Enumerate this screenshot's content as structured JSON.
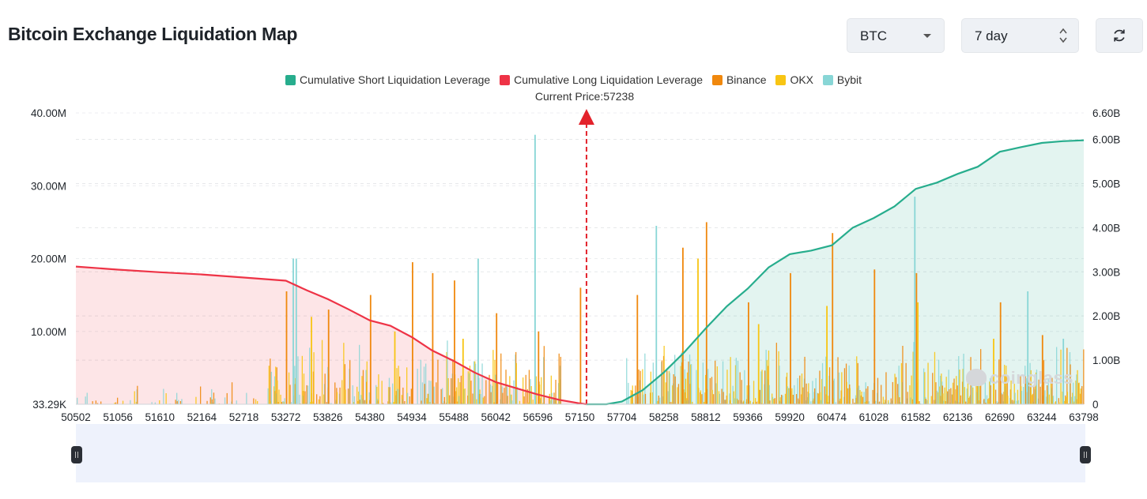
{
  "header": {
    "title": "Bitcoin Exchange Liquidation Map"
  },
  "controls": {
    "coin_value": "BTC",
    "range_value": "7 day",
    "refresh_icon": "refresh-icon"
  },
  "legend": [
    {
      "label": "Cumulative Short Liquidation Leverage",
      "color": "#27ad8d"
    },
    {
      "label": "Cumulative Long Liquidation Leverage",
      "color": "#ee3346"
    },
    {
      "label": "Binance",
      "color": "#f0880d"
    },
    {
      "label": "OKX",
      "color": "#f8c513"
    },
    {
      "label": "Bybit",
      "color": "#88d6d6"
    }
  ],
  "current_price_label": "Current Price:57238",
  "watermark": "coinglass",
  "chart_data": {
    "type": "bar",
    "title": "Bitcoin Exchange Liquidation Map",
    "current_price": 57238,
    "x_ticks": [
      "50502",
      "51056",
      "51610",
      "52164",
      "52718",
      "53272",
      "53826",
      "54380",
      "54934",
      "55488",
      "56042",
      "56596",
      "57150",
      "57704",
      "58258",
      "58812",
      "59366",
      "59920",
      "60474",
      "61028",
      "61582",
      "62136",
      "62690",
      "63244",
      "63798"
    ],
    "x_range": [
      50502,
      63798
    ],
    "y_left": {
      "ticks": [
        "33.29K",
        "10.00M",
        "20.00M",
        "30.00M",
        "40.00M"
      ],
      "tick_values": [
        33290,
        10000000,
        20000000,
        30000000,
        40000000
      ],
      "range": [
        0,
        40000000
      ]
    },
    "y_right": {
      "ticks": [
        "0",
        "1.00B",
        "2.00B",
        "3.00B",
        "4.00B",
        "5.00B",
        "6.00B",
        "6.60B"
      ],
      "tick_values": [
        0,
        1000000000.0,
        2000000000.0,
        3000000000.0,
        4000000000.0,
        5000000000.0,
        6000000000.0,
        6600000000.0
      ],
      "range": [
        0,
        6600000000.0
      ]
    },
    "series": [
      {
        "name": "Cumulative Long Liquidation Leverage",
        "type": "area",
        "axis": "right",
        "points": [
          [
            50502,
            3120000000.0
          ],
          [
            51056,
            3050000000.0
          ],
          [
            51610,
            2990000000.0
          ],
          [
            52164,
            2940000000.0
          ],
          [
            52718,
            2870000000.0
          ],
          [
            53272,
            2800000000.0
          ],
          [
            53550,
            2580000000.0
          ],
          [
            53826,
            2380000000.0
          ],
          [
            54100,
            2150000000.0
          ],
          [
            54380,
            1900000000.0
          ],
          [
            54650,
            1780000000.0
          ],
          [
            54934,
            1520000000.0
          ],
          [
            55200,
            1220000000.0
          ],
          [
            55488,
            980000000.0
          ],
          [
            55760,
            720000000.0
          ],
          [
            56042,
            500000000.0
          ],
          [
            56320,
            360000000.0
          ],
          [
            56596,
            220000000.0
          ],
          [
            56880,
            100000000.0
          ],
          [
            57150,
            20000000.0
          ],
          [
            57238,
            0.0
          ]
        ]
      },
      {
        "name": "Cumulative Short Liquidation Leverage",
        "type": "area",
        "axis": "right",
        "points": [
          [
            57238,
            0.0
          ],
          [
            57500,
            0.0
          ],
          [
            57704,
            60000000.0
          ],
          [
            57980,
            320000000.0
          ],
          [
            58258,
            720000000.0
          ],
          [
            58530,
            1180000000.0
          ],
          [
            58812,
            1720000000.0
          ],
          [
            59090,
            2220000000.0
          ],
          [
            59366,
            2620000000.0
          ],
          [
            59640,
            3100000000.0
          ],
          [
            59920,
            3400000000.0
          ],
          [
            60200,
            3480000000.0
          ],
          [
            60474,
            3600000000.0
          ],
          [
            60750,
            4000000000.0
          ],
          [
            61028,
            4220000000.0
          ],
          [
            61300,
            4480000000.0
          ],
          [
            61582,
            4880000000.0
          ],
          [
            61860,
            5020000000.0
          ],
          [
            62136,
            5220000000.0
          ],
          [
            62400,
            5380000000.0
          ],
          [
            62690,
            5720000000.0
          ],
          [
            62960,
            5820000000.0
          ],
          [
            63244,
            5920000000.0
          ],
          [
            63520,
            5960000000.0
          ],
          [
            63798,
            5980000000.0
          ]
        ]
      },
      {
        "name": "Binance",
        "type": "bar",
        "axis": "left",
        "peaks": [
          [
            53272,
            15500000
          ],
          [
            53826,
            13000000
          ],
          [
            54380,
            15000000
          ],
          [
            54934,
            19500000
          ],
          [
            55200,
            18000000
          ],
          [
            55488,
            17000000
          ],
          [
            56042,
            12500000
          ],
          [
            56596,
            10000000
          ],
          [
            57150,
            16000000
          ],
          [
            57900,
            15000000
          ],
          [
            58500,
            21500000
          ],
          [
            58812,
            25000000
          ],
          [
            59366,
            14000000
          ],
          [
            59920,
            18000000
          ],
          [
            60474,
            23500000
          ],
          [
            61028,
            18500000
          ],
          [
            61582,
            18000000
          ],
          [
            62690,
            14000000
          ],
          [
            63244,
            9500000
          ]
        ]
      },
      {
        "name": "OKX",
        "type": "bar",
        "axis": "left",
        "peaks": [
          [
            53600,
            12000000
          ],
          [
            54700,
            10000000
          ],
          [
            55600,
            9000000
          ],
          [
            58700,
            20000000
          ],
          [
            59500,
            11000000
          ],
          [
            60400,
            13500000
          ],
          [
            61600,
            14000000
          ],
          [
            62600,
            9000000
          ]
        ]
      },
      {
        "name": "Bybit",
        "type": "bar",
        "axis": "left",
        "peaks": [
          [
            53360,
            20000000
          ],
          [
            53400,
            20000000
          ],
          [
            55800,
            20000000
          ],
          [
            56550,
            37000000
          ],
          [
            58150,
            24500000
          ],
          [
            61560,
            28500000
          ],
          [
            63050,
            15500000
          ],
          [
            63520,
            9000000
          ]
        ]
      }
    ]
  }
}
